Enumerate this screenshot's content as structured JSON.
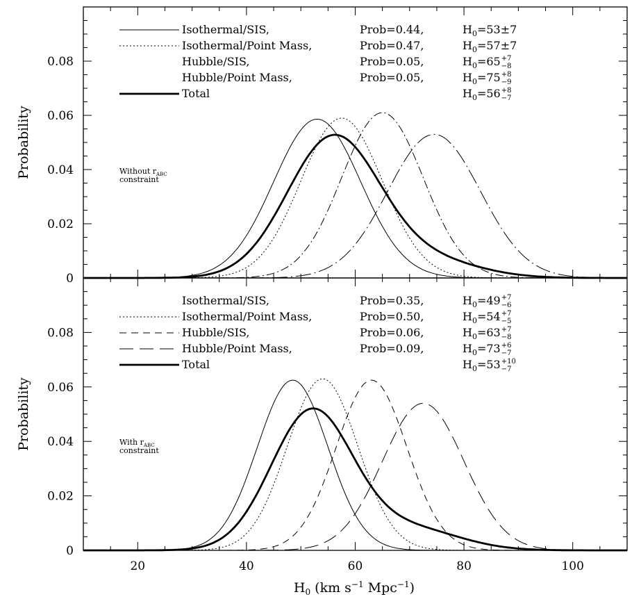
{
  "chart_data": [
    {
      "type": "line",
      "panel": "top",
      "ylabel": "Probability",
      "xlim": [
        10,
        110
      ],
      "ylim": [
        0,
        0.1
      ],
      "y_ticks": [
        "0",
        "0.02",
        "0.04",
        "0.06",
        "0.08"
      ],
      "annotation": {
        "line1": "Without r",
        "sub": "ABC",
        "line2": "constraint"
      },
      "series": [
        {
          "name": "Isothermal/SIS,",
          "prob": "Prob=0.44,",
          "h0": "H",
          "h0_sub": "0",
          "h0_val": "=53±7",
          "h0_sup": "",
          "h0_low": "",
          "style": "solid",
          "mean": 53,
          "sd": 8.0,
          "peak": 0.0586
        },
        {
          "name": "Isothermal/Point Mass,",
          "prob": "Prob=0.47,",
          "h0": "H",
          "h0_sub": "0",
          "h0_val": "=57±7",
          "h0_sup": "",
          "h0_low": "",
          "style": "dotted",
          "mean": 57.5,
          "sd": 7.5,
          "peak": 0.059
        },
        {
          "name": "Hubble/SIS,",
          "prob": "Prob=0.05,",
          "h0": "H",
          "h0_sub": "0",
          "h0_val": "=65",
          "h0_sup": "7",
          "h0_low": "8",
          "style": "dashdot",
          "mean": 65,
          "sd": 7.5,
          "peak": 0.061
        },
        {
          "name": "Hubble/Point Mass,",
          "prob": "Prob=0.05,",
          "h0": "H",
          "h0_sub": "0",
          "h0_val": "=75",
          "h0_sup": "8",
          "h0_low": "9",
          "style": "dashdotlong",
          "mean": 74.5,
          "sd": 8.5,
          "peak": 0.053
        },
        {
          "name": "Total",
          "prob": "",
          "h0": "H",
          "h0_sub": "0",
          "h0_val": "=56",
          "h0_sup": "8",
          "h0_low": "7",
          "style": "thick",
          "mean": 56,
          "sd": 8.5,
          "peak": 0.052,
          "skew_tail": 0.006
        }
      ]
    },
    {
      "type": "line",
      "panel": "bottom",
      "xlabel": "H",
      "xlabel_sub": "0",
      "xlabel_rest": " (km s",
      "xlabel_sup1": "−1",
      "xlabel_rest2": " Mpc",
      "xlabel_sup2": "−1",
      "xlabel_end": ")",
      "ylabel": "Probability",
      "xlim": [
        10,
        110
      ],
      "ylim": [
        0,
        0.1
      ],
      "x_ticks": [
        "20",
        "40",
        "60",
        "80",
        "100"
      ],
      "y_ticks": [
        "0",
        "0.02",
        "0.04",
        "0.06",
        "0.08"
      ],
      "annotation": {
        "line1": "With r",
        "sub": "ABC",
        "line2": "constraint"
      },
      "series": [
        {
          "name": "Isothermal/SIS,",
          "prob": "Prob=0.35,",
          "h0": "H",
          "h0_sub": "0",
          "h0_val": "=49",
          "h0_sup": "7",
          "h0_low": "6",
          "style": "solid",
          "mean": 48.5,
          "sd": 6.5,
          "peak": 0.0625
        },
        {
          "name": "Isothermal/Point Mass,",
          "prob": "Prob=0.50,",
          "h0": "H",
          "h0_sub": "0",
          "h0_val": "=54",
          "h0_sup": "7",
          "h0_low": "5",
          "style": "dotted",
          "mean": 54,
          "sd": 6.5,
          "peak": 0.063
        },
        {
          "name": "Hubble/SIS,",
          "prob": "Prob=0.06,",
          "h0": "H",
          "h0_sub": "0",
          "h0_val": "=63",
          "h0_sup": "7",
          "h0_low": "8",
          "style": "dashed",
          "mean": 63,
          "sd": 6.5,
          "peak": 0.0625
        },
        {
          "name": "Hubble/Point Mass,",
          "prob": "Prob=0.09,",
          "h0": "H",
          "h0_sub": "0",
          "h0_val": "=73",
          "h0_sup": "6",
          "h0_low": "7",
          "style": "longdash",
          "mean": 72.5,
          "sd": 7.5,
          "peak": 0.054
        },
        {
          "name": "Total",
          "prob": "",
          "h0": "H",
          "h0_sub": "0",
          "h0_val": "=53",
          "h0_sup": "10",
          "h0_low": "7",
          "style": "thick",
          "mean": 52,
          "sd": 7.5,
          "peak": 0.051,
          "skew_tail": 0.008
        }
      ]
    }
  ]
}
